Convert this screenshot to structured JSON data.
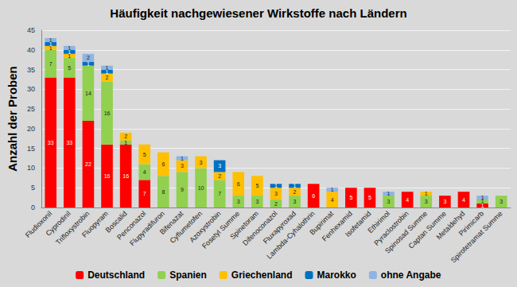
{
  "chart_data": {
    "type": "bar",
    "title": "Häufigkeit nachgewiesener Wirkstoffe nach Ländern",
    "y_label": "Anzahl der Proben",
    "categories": [
      "Fludioxonil",
      "Cyprodinil",
      "Trifloxystrobin",
      "Fluopyram",
      "Boscalid",
      "Penconazol",
      "Flupyradifuron",
      "Bifenazat",
      "Cyflumetofen",
      "Azoxystrobin",
      "Fosetyl Summe",
      "Spinetoram",
      "Difenoconazol",
      "Fluxapyroxad",
      "Lambda-Cyhalothrin",
      "Bupirimat",
      "Fenhexamid",
      "Isofetamid",
      "Ethirimol",
      "Pyraclostrobin",
      "Spinosad Summe",
      "Captan Summe",
      "Metaldehyd",
      "Pirimicarb",
      "Spirotetramat Summe"
    ],
    "series": [
      {
        "name": "Deutschland",
        "color": "#ff0000",
        "values": [
          33,
          33,
          22,
          16,
          16,
          7,
          null,
          null,
          null,
          null,
          null,
          null,
          null,
          null,
          6,
          null,
          5,
          5,
          null,
          4,
          null,
          3,
          4,
          1,
          null
        ]
      },
      {
        "name": "Spanien",
        "color": "#92d050",
        "values": [
          7,
          5,
          14,
          16,
          1,
          4,
          8,
          9,
          10,
          7,
          3,
          3,
          2,
          3,
          null,
          null,
          null,
          null,
          3,
          null,
          3,
          null,
          null,
          1,
          3
        ]
      },
      {
        "name": "Griechenland",
        "color": "#ffc000",
        "values": [
          1,
          1,
          null,
          2,
          2,
          5,
          6,
          3,
          3,
          2,
          6,
          5,
          3,
          2,
          null,
          4,
          null,
          null,
          null,
          null,
          1,
          null,
          null,
          null,
          null
        ]
      },
      {
        "name": "Marokko",
        "color": "#0070c0",
        "values": [
          1,
          1,
          1,
          1,
          null,
          null,
          null,
          null,
          null,
          3,
          null,
          null,
          1,
          1,
          null,
          null,
          null,
          null,
          null,
          null,
          null,
          null,
          null,
          null,
          null
        ]
      },
      {
        "name": "ohne Angabe",
        "color": "#8eb4e3",
        "values": [
          1,
          1,
          2,
          1,
          null,
          null,
          null,
          1,
          null,
          null,
          null,
          null,
          null,
          null,
          null,
          1,
          null,
          null,
          1,
          null,
          null,
          null,
          null,
          1,
          null
        ]
      }
    ],
    "ylim": [
      0,
      45
    ],
    "yticks": [
      0,
      5,
      10,
      15,
      20,
      25,
      30,
      35,
      40,
      45
    ],
    "stacked": true,
    "data_labels": true,
    "grid": true,
    "legend": "bottom"
  }
}
